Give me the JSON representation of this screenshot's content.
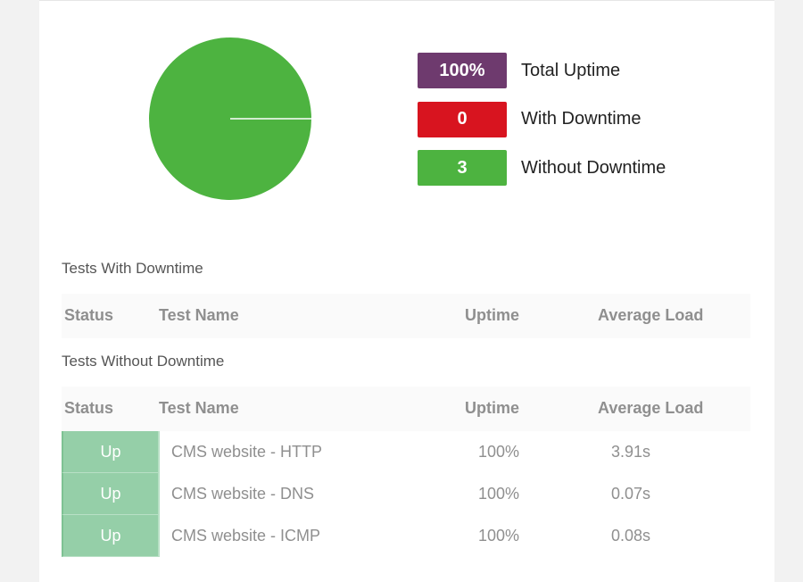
{
  "summary": {
    "total_uptime": {
      "value": "100%",
      "label": "Total Uptime",
      "color": "#6e3a6e"
    },
    "with_downtime": {
      "value": "0",
      "label": "With Downtime",
      "color": "#d8141f"
    },
    "without_downtime": {
      "value": "3",
      "label": "Without Downtime",
      "color": "#4db340"
    }
  },
  "chart_data": {
    "type": "pie",
    "categories": [
      "With Downtime",
      "Without Downtime"
    ],
    "values": [
      0,
      3
    ],
    "colors": [
      "#d8141f",
      "#4db340"
    ]
  },
  "sections": {
    "with_downtime": {
      "title": "Tests With Downtime",
      "columns": [
        "Status",
        "Test Name",
        "Uptime",
        "Average Load"
      ],
      "rows": []
    },
    "without_downtime": {
      "title": "Tests Without Downtime",
      "columns": [
        "Status",
        "Test Name",
        "Uptime",
        "Average Load"
      ],
      "rows": [
        {
          "status": "Up",
          "name": "CMS website - HTTP",
          "uptime": "100%",
          "load": "3.91s"
        },
        {
          "status": "Up",
          "name": "CMS website - DNS",
          "uptime": "100%",
          "load": "0.07s"
        },
        {
          "status": "Up",
          "name": "CMS website - ICMP",
          "uptime": "100%",
          "load": "0.08s"
        }
      ]
    }
  }
}
